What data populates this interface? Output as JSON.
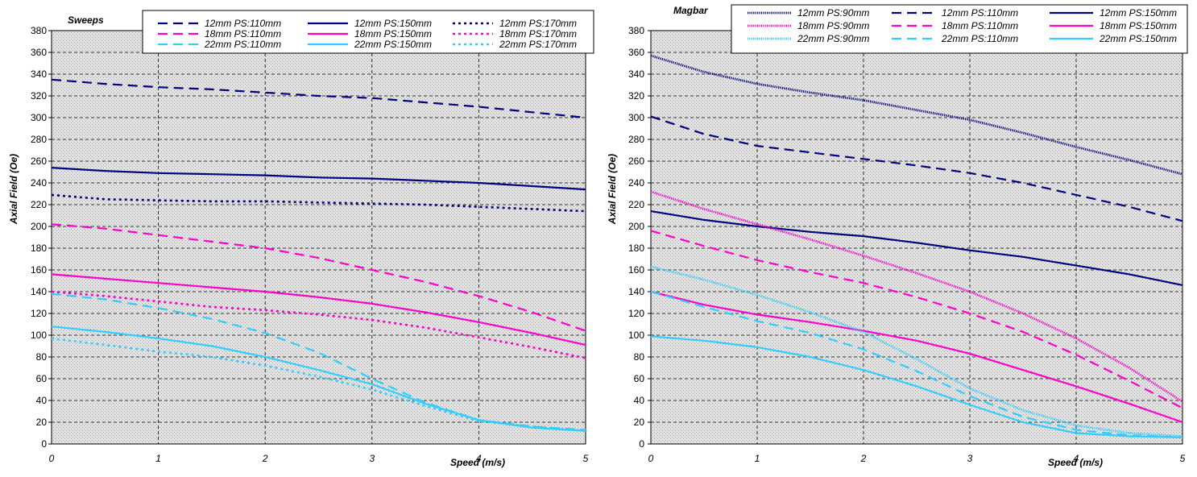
{
  "chart_data": [
    {
      "type": "line",
      "title": "Sweeps",
      "xlabel": "Speed (m/s)",
      "ylabel": "Axial Field (Oe)",
      "xlim": [
        0,
        5
      ],
      "ylim": [
        0,
        380
      ],
      "xticks": [
        "0",
        "1",
        "2",
        "3",
        "4",
        "5"
      ],
      "yticks": [
        "0",
        "20",
        "40",
        "60",
        "80",
        "100",
        "120",
        "140",
        "160",
        "180",
        "200",
        "220",
        "240",
        "260",
        "280",
        "300",
        "320",
        "340",
        "360",
        "380"
      ],
      "grid": true,
      "legend_position": "top",
      "x": [
        0,
        0.5,
        1,
        1.5,
        2,
        2.5,
        3,
        3.5,
        4,
        4.5,
        5
      ],
      "series": [
        {
          "name": "12mm PS:110mm",
          "color": "#000080",
          "dash": "long-dash",
          "values": [
            335,
            331,
            328,
            326,
            323,
            320,
            318,
            314,
            310,
            305,
            300
          ]
        },
        {
          "name": "12mm PS:150mm",
          "color": "#000080",
          "dash": "solid",
          "values": [
            254,
            251,
            249,
            248,
            247,
            245,
            244,
            242,
            240,
            237,
            234
          ]
        },
        {
          "name": "12mm PS:170mm",
          "color": "#000080",
          "dash": "dot",
          "values": [
            229,
            225,
            224,
            223,
            223,
            222,
            221,
            220,
            218,
            216,
            214
          ]
        },
        {
          "name": "18mm PS:110mm",
          "color": "#ff00cc",
          "dash": "long-dash",
          "values": [
            202,
            198,
            192,
            186,
            180,
            171,
            160,
            149,
            136,
            121,
            104
          ]
        },
        {
          "name": "18mm PS:150mm",
          "color": "#ff00cc",
          "dash": "solid",
          "values": [
            156,
            152,
            148,
            144,
            140,
            135,
            129,
            121,
            112,
            102,
            91
          ]
        },
        {
          "name": "18mm PS:170mm",
          "color": "#ff00cc",
          "dash": "dot",
          "values": [
            140,
            136,
            131,
            126,
            123,
            119,
            114,
            107,
            98,
            89,
            79
          ]
        },
        {
          "name": "22mm PS:110mm",
          "color": "#33ccff",
          "dash": "long-dash",
          "values": [
            138,
            133,
            125,
            115,
            102,
            84,
            60,
            38,
            22,
            16,
            13
          ]
        },
        {
          "name": "22mm PS:150mm",
          "color": "#33ccff",
          "dash": "solid",
          "values": [
            108,
            103,
            97,
            90,
            80,
            68,
            55,
            37,
            22,
            15,
            12
          ]
        },
        {
          "name": "22mm PS:170mm",
          "color": "#33ccff",
          "dash": "dot",
          "values": [
            97,
            91,
            85,
            80,
            72,
            62,
            50,
            35,
            21,
            16,
            12
          ]
        }
      ]
    },
    {
      "type": "line",
      "title": "Magbar",
      "xlabel": "Speed (m/s)",
      "ylabel": "Axial Field (Oe)",
      "xlim": [
        0,
        5
      ],
      "ylim": [
        0,
        380
      ],
      "xticks": [
        "0",
        "1",
        "2",
        "3",
        "4",
        "5"
      ],
      "yticks": [
        "0",
        "20",
        "40",
        "60",
        "80",
        "100",
        "120",
        "140",
        "160",
        "180",
        "200",
        "220",
        "240",
        "260",
        "280",
        "300",
        "320",
        "340",
        "360",
        "380"
      ],
      "grid": true,
      "legend_position": "top",
      "x": [
        0,
        0.5,
        1,
        1.5,
        2,
        2.5,
        3,
        3.5,
        4,
        4.5,
        5
      ],
      "series": [
        {
          "name": "12mm PS:90mm",
          "color": "#000080",
          "dash": "fine-dot",
          "values": [
            357,
            342,
            331,
            323,
            316,
            307,
            298,
            286,
            273,
            261,
            248
          ]
        },
        {
          "name": "12mm PS:110mm",
          "color": "#000080",
          "dash": "long-dash",
          "values": [
            301,
            285,
            274,
            268,
            262,
            256,
            249,
            240,
            229,
            218,
            205
          ]
        },
        {
          "name": "12mm PS:150mm",
          "color": "#000080",
          "dash": "solid",
          "values": [
            214,
            206,
            200,
            195,
            191,
            185,
            178,
            172,
            164,
            156,
            146
          ]
        },
        {
          "name": "18mm PS:90mm",
          "color": "#ff00cc",
          "dash": "fine-dot",
          "values": [
            232,
            216,
            202,
            188,
            173,
            157,
            140,
            120,
            97,
            70,
            39
          ]
        },
        {
          "name": "18mm PS:110mm",
          "color": "#ff00cc",
          "dash": "long-dash",
          "values": [
            196,
            182,
            169,
            158,
            148,
            135,
            120,
            103,
            82,
            58,
            33
          ]
        },
        {
          "name": "18mm PS:150mm",
          "color": "#ff00cc",
          "dash": "solid",
          "values": [
            140,
            128,
            119,
            112,
            104,
            95,
            83,
            68,
            53,
            37,
            20
          ]
        },
        {
          "name": "22mm PS:90mm",
          "color": "#33ccff",
          "dash": "fine-dot",
          "values": [
            163,
            151,
            137,
            121,
            103,
            78,
            51,
            31,
            17,
            10,
            7
          ]
        },
        {
          "name": "22mm PS:110mm",
          "color": "#33ccff",
          "dash": "long-dash",
          "values": [
            140,
            126,
            113,
            102,
            87,
            67,
            44,
            25,
            13,
            8,
            6
          ]
        },
        {
          "name": "22mm PS:150mm",
          "color": "#33ccff",
          "dash": "solid",
          "values": [
            99,
            95,
            89,
            80,
            68,
            53,
            36,
            20,
            10,
            7,
            6
          ]
        }
      ]
    }
  ]
}
